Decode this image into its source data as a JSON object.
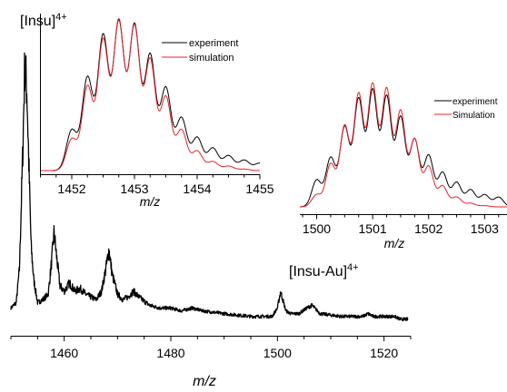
{
  "labels": {
    "insu_main": "[Insu]",
    "insu_sup": "4+",
    "insuau_main": "[Insu-Au]",
    "insuau_sup": "4+"
  },
  "colors": {
    "experiment": "#000000",
    "simulation": "#e8212b"
  },
  "chart_data": [
    {
      "type": "line",
      "xlabel": "m/z",
      "ylabel": "",
      "xlim": [
        1450,
        1525
      ],
      "ylim": [
        0,
        100
      ],
      "xticks": [
        "1460",
        "1480",
        "1500",
        "1520"
      ],
      "series": [
        {
          "x": [
            1450,
            1451,
            1451.6,
            1452.2,
            1452.6,
            1453.0,
            1453.4,
            1453.8,
            1454.3,
            1455,
            1456,
            1457,
            1457.6,
            1458.1,
            1458.6,
            1459.2,
            1460,
            1461,
            1462,
            1463,
            1464,
            1465,
            1466,
            1467,
            1467.8,
            1468.4,
            1469,
            1470,
            1471,
            1472,
            1473,
            1474,
            1476,
            1478,
            1480,
            1482,
            1484,
            1486,
            1490,
            1495,
            1499,
            1500,
            1500.6,
            1501,
            1501.6,
            1502.5,
            1504,
            1505.5,
            1506.5,
            1508,
            1512,
            1516,
            1517,
            1518,
            1520,
            1522,
            1523,
            1524.5
          ],
          "y": [
            6,
            8,
            20,
            60,
            93,
            84,
            55,
            28,
            16,
            8,
            9,
            11,
            22,
            33,
            24,
            14,
            12,
            15,
            12,
            13,
            11,
            10,
            9,
            12,
            20,
            27,
            18,
            11,
            9,
            10,
            12,
            10,
            7,
            6,
            6,
            5,
            6,
            5,
            4,
            3,
            3,
            6,
            12,
            9,
            5,
            4,
            4,
            6,
            7,
            4,
            3,
            3,
            4,
            3,
            3,
            3,
            2,
            2
          ]
        }
      ]
    },
    {
      "type": "line",
      "xlabel": "m/z",
      "xlim": [
        1451.5,
        1455
      ],
      "ylim": [
        0,
        1
      ],
      "xticks": [
        "1452",
        "1453",
        "1454",
        "1455"
      ],
      "legend": "top-right",
      "series": [
        {
          "name": "experiment",
          "centers": [
            1452.0,
            1452.25,
            1452.5,
            1452.75,
            1453.0,
            1453.25,
            1453.5,
            1453.75,
            1454.0,
            1454.25,
            1454.5,
            1454.75,
            1455.0
          ],
          "heights": [
            0.27,
            0.62,
            0.9,
            0.99,
            0.97,
            0.77,
            0.55,
            0.35,
            0.22,
            0.15,
            0.1,
            0.07,
            0.05
          ]
        },
        {
          "name": "simulation",
          "centers": [
            1452.0,
            1452.25,
            1452.5,
            1452.75,
            1453.0,
            1453.25,
            1453.5,
            1453.75,
            1454.0,
            1454.25,
            1454.5,
            1454.75,
            1455.0
          ],
          "heights": [
            0.21,
            0.56,
            0.87,
            1.0,
            0.96,
            0.74,
            0.49,
            0.27,
            0.13,
            0.06,
            0.03,
            0.01,
            0.0
          ]
        }
      ]
    },
    {
      "type": "line",
      "xlabel": "m/z",
      "xlim": [
        1499.7,
        1503.4
      ],
      "ylim": [
        0,
        1
      ],
      "xticks": [
        "1500",
        "1501",
        "1502",
        "1503"
      ],
      "legend": "top-right",
      "series": [
        {
          "name": "experiment",
          "centers": [
            1500.0,
            1500.25,
            1500.5,
            1500.75,
            1501.0,
            1501.25,
            1501.5,
            1501.75,
            1502.0,
            1502.25,
            1502.5,
            1502.75,
            1503.0,
            1503.25
          ],
          "heights": [
            0.22,
            0.4,
            0.65,
            0.88,
            0.95,
            0.9,
            0.73,
            0.55,
            0.42,
            0.28,
            0.2,
            0.14,
            0.1,
            0.08
          ]
        },
        {
          "name": "Simulation",
          "centers": [
            1500.0,
            1500.25,
            1500.5,
            1500.75,
            1501.0,
            1501.25,
            1501.5,
            1501.75,
            1502.0,
            1502.25,
            1502.5,
            1502.75,
            1503.0,
            1503.25
          ],
          "heights": [
            0.1,
            0.35,
            0.66,
            0.92,
            1.0,
            0.96,
            0.78,
            0.55,
            0.33,
            0.17,
            0.08,
            0.03,
            0.01,
            0.0
          ]
        }
      ]
    }
  ]
}
